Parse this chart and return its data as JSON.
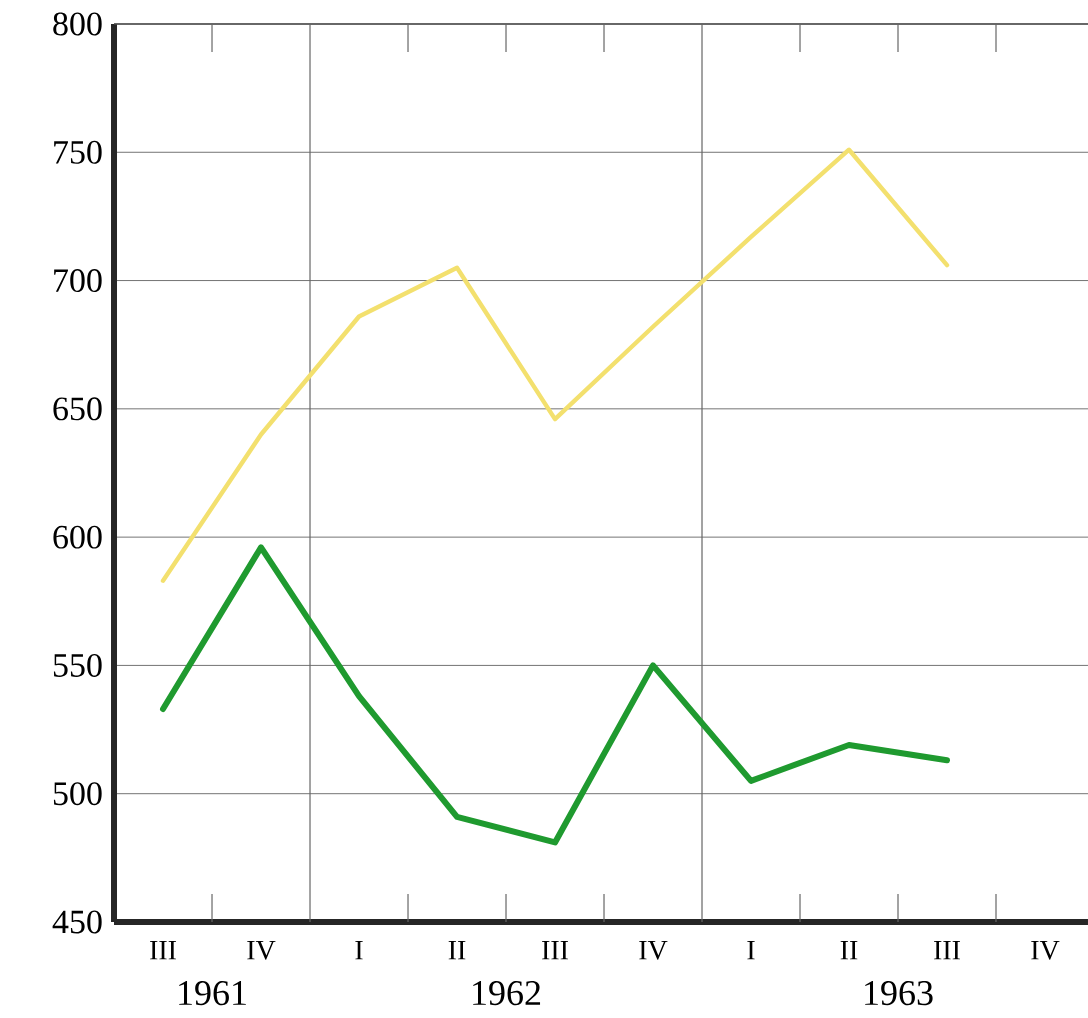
{
  "chart_data": {
    "type": "line",
    "categories": [
      "III",
      "IV",
      "I",
      "II",
      "III",
      "IV",
      "I",
      "II",
      "III",
      "IV"
    ],
    "series": [
      {
        "color": "#f3e06e",
        "values": [
          583,
          640,
          686,
          705,
          646,
          682,
          717,
          751,
          706,
          null
        ]
      },
      {
        "color": "#1f9a2f",
        "values": [
          533,
          596,
          538,
          491,
          481,
          550,
          505,
          519,
          513,
          null
        ]
      }
    ],
    "ylim": [
      450,
      800
    ],
    "yticks": [
      450,
      500,
      550,
      600,
      650,
      700,
      750,
      800
    ],
    "grid": "y",
    "marker": "none",
    "line_style": "solid",
    "annotations": [
      "1961",
      "1962",
      "1963"
    ]
  }
}
